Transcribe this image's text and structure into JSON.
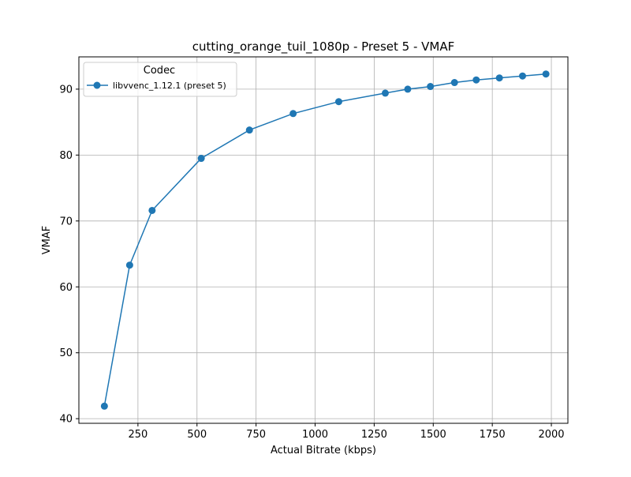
{
  "chart_data": {
    "type": "line",
    "title": "cutting_orange_tuil_1080p - Preset 5 - VMAF",
    "xlabel": "Actual Bitrate (kbps)",
    "ylabel": "VMAF",
    "xlim": [
      0,
      2070
    ],
    "ylim": [
      39.3,
      94.9
    ],
    "xticks": [
      250,
      500,
      750,
      1000,
      1250,
      1500,
      1750,
      2000
    ],
    "yticks": [
      40,
      50,
      60,
      70,
      80,
      90
    ],
    "grid": true,
    "legend": {
      "title": "Codec",
      "placement": "top-left"
    },
    "series": [
      {
        "name": "libvvenc_1.12.1 (preset 5)",
        "color": "#1f77b4",
        "marker": "circle",
        "x": [
          108,
          215,
          310,
          518,
          722,
          907,
          1100,
          1297,
          1392,
          1488,
          1590,
          1682,
          1780,
          1878,
          1977
        ],
        "y": [
          41.9,
          63.3,
          71.6,
          79.5,
          83.8,
          86.3,
          88.1,
          89.4,
          90.0,
          90.4,
          91.0,
          91.4,
          91.7,
          92.0,
          92.3
        ]
      }
    ]
  }
}
